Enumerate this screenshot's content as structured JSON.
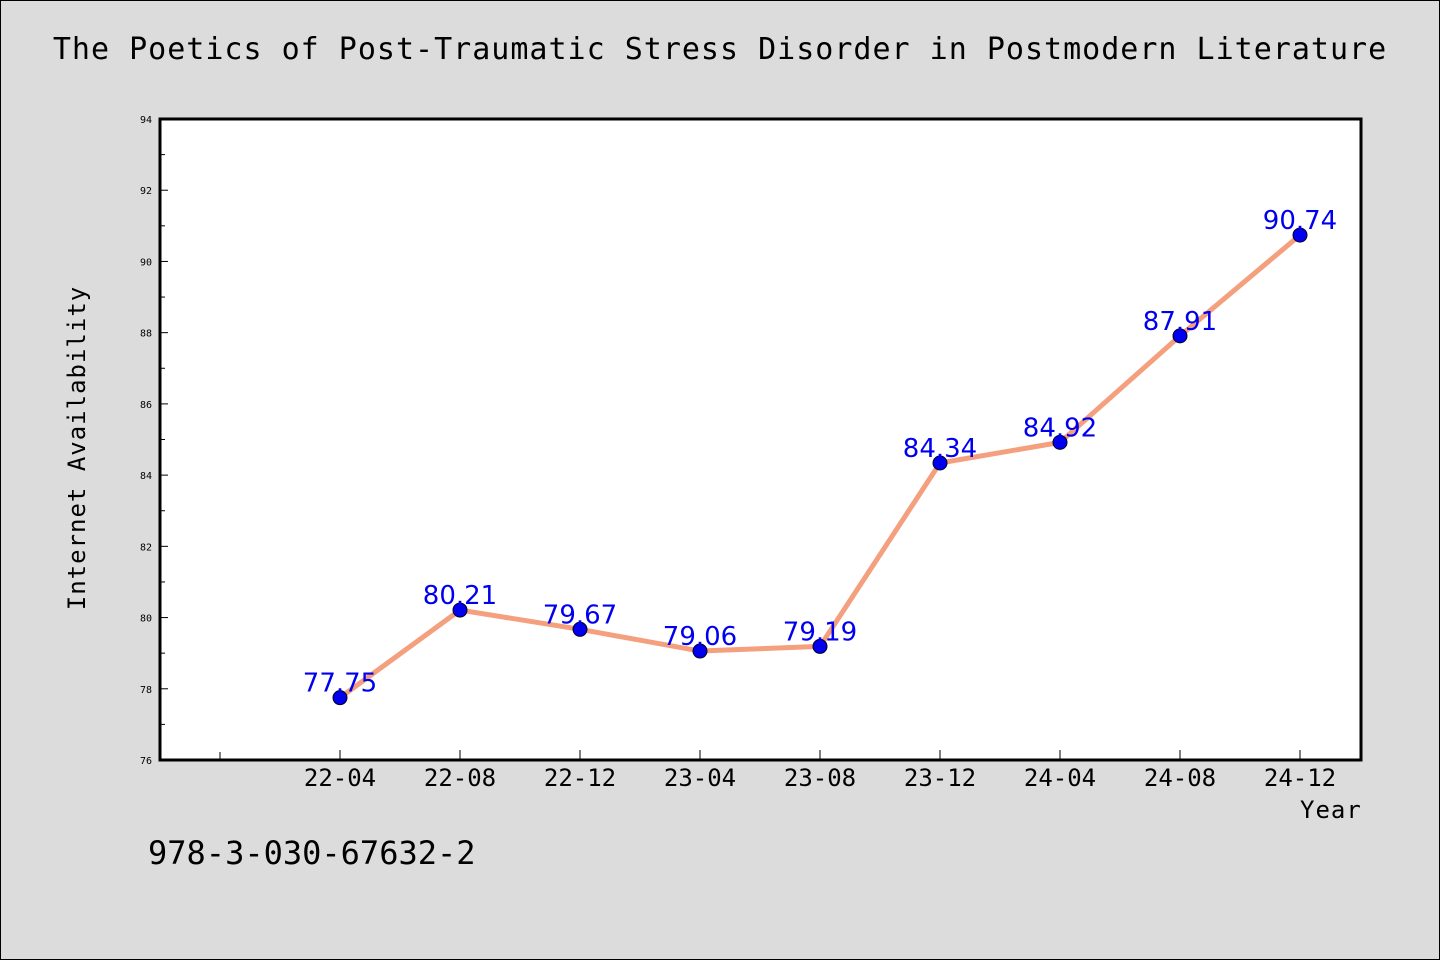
{
  "chart_data": {
    "type": "line",
    "title": "The Poetics of Post-Traumatic Stress Disorder in Postmodern Literature",
    "xlabel": "Year",
    "ylabel": "Internet Availability",
    "categories": [
      "22-04",
      "22-08",
      "22-12",
      "23-04",
      "23-08",
      "23-12",
      "24-04",
      "24-08",
      "24-12"
    ],
    "series": [
      {
        "values": [
          77.75,
          80.21,
          79.67,
          79.06,
          79.19,
          84.34,
          84.92,
          87.91,
          90.74
        ]
      }
    ],
    "data_labels": [
      "77.75",
      "80.21",
      "79.67",
      "79.06",
      "79.19",
      "84.34",
      "84.92",
      "87.91",
      "90.74"
    ],
    "ylim": [
      76,
      94
    ],
    "yticks": [
      "76",
      "78",
      "80",
      "82",
      "84",
      "86",
      "88",
      "90",
      "92",
      "94"
    ],
    "grid": false,
    "line_color": "#f4a07e",
    "marker_color": "#0000ee",
    "label_color": "#0000ee"
  },
  "footer": {
    "isbn": "978-3-030-67632-2"
  }
}
